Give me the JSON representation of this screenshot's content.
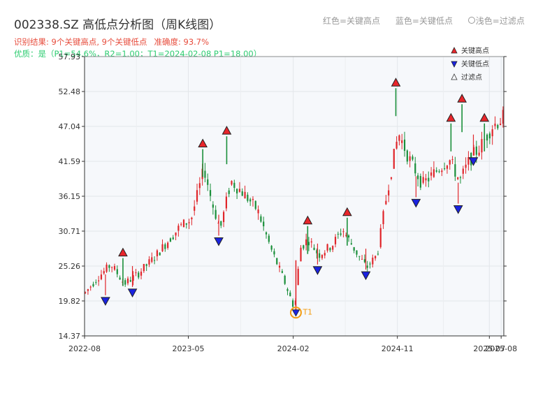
{
  "header": {
    "title": "002338.SZ 高低点分析图（周K线图）",
    "result_line": "识别结果: 9个关键高点, 9个关键低点",
    "accuracy": "准确度: 93.7%",
    "quality_line": "优质：是（P1=54.6%，R2=1.00；T1=2024-02-08 P1=18.00）"
  },
  "top_legend": {
    "red": "红色=关键高点",
    "blue": "蓝色=关键低点",
    "light": "浅色=过滤点"
  },
  "colors": {
    "up": "#e0262b",
    "down": "#1a8f3a",
    "high_marker": "#e8262b",
    "low_marker": "#1a23e0",
    "t1": "#f39c12",
    "plot_bg": "#f6f8fb",
    "grid": "#e3e6ea"
  },
  "chart_data": {
    "type": "candlestick",
    "title": "002338.SZ 高低点分析图（周K线图）",
    "y_ticks": [
      "14.37",
      "19.82",
      "25.26",
      "30.71",
      "36.15",
      "41.59",
      "47.04",
      "52.48",
      "57.93"
    ],
    "ylim": [
      14.37,
      57.93
    ],
    "x_ticks": [
      {
        "label": "2022-08",
        "date": "2022-08-01"
      },
      {
        "label": "2023-05",
        "date": "2023-05-01"
      },
      {
        "label": "2024-02",
        "date": "2024-02-01"
      },
      {
        "label": "2024-11",
        "date": "2024-11-01"
      },
      {
        "label": "2025-07",
        "date": "2025-07-01"
      },
      {
        "label": "2025-08",
        "date": "2025-08-01"
      }
    ],
    "xlim": [
      "2022-08-01",
      "2025-08-08"
    ],
    "grid": true,
    "legend": {
      "placement": "top-right",
      "items": [
        {
          "label": "关键高点",
          "marker": "triangle-up",
          "color": "#e8262b"
        },
        {
          "label": "关键低点",
          "marker": "triangle-down",
          "color": "#1a23e0"
        },
        {
          "label": "过滤点",
          "marker": "triangle-up-hollow",
          "color": "#333333"
        }
      ]
    },
    "trend": [
      [
        "2022-08-01",
        21.0
      ],
      [
        "2022-09-05",
        23.5
      ],
      [
        "2022-10-10",
        25.5
      ],
      [
        "2022-11-14",
        22.5
      ],
      [
        "2022-12-19",
        24.0
      ],
      [
        "2023-01-30",
        26.5
      ],
      [
        "2023-03-06",
        29.0
      ],
      [
        "2023-04-10",
        31.5
      ],
      [
        "2023-05-08",
        32.5
      ],
      [
        "2023-06-12",
        40.5
      ],
      [
        "2023-07-03",
        35.0
      ],
      [
        "2023-07-24",
        31.0
      ],
      [
        "2023-08-21",
        38.5
      ],
      [
        "2023-09-25",
        36.5
      ],
      [
        "2023-10-30",
        34.0
      ],
      [
        "2023-12-04",
        28.0
      ],
      [
        "2024-01-08",
        23.0
      ],
      [
        "2024-02-05",
        18.5
      ],
      [
        "2024-02-19",
        28.0
      ],
      [
        "2024-03-11",
        29.5
      ],
      [
        "2024-04-08",
        27.0
      ],
      [
        "2024-05-13",
        28.5
      ],
      [
        "2024-06-10",
        31.0
      ],
      [
        "2024-07-15",
        27.5
      ],
      [
        "2024-08-12",
        25.0
      ],
      [
        "2024-09-09",
        27.0
      ],
      [
        "2024-10-07",
        37.5
      ],
      [
        "2024-11-04",
        46.0
      ],
      [
        "2024-12-02",
        42.0
      ],
      [
        "2025-01-06",
        38.0
      ],
      [
        "2025-02-10",
        40.0
      ],
      [
        "2025-03-17",
        42.0
      ],
      [
        "2025-04-14",
        38.5
      ],
      [
        "2025-05-12",
        42.0
      ],
      [
        "2025-06-09",
        44.0
      ],
      [
        "2025-07-07",
        47.0
      ],
      [
        "2025-08-08",
        48.5
      ]
    ],
    "key_highs": [
      {
        "date": "2022-11-10",
        "value": 26.5
      },
      {
        "date": "2023-06-08",
        "value": 43.5
      },
      {
        "date": "2023-08-10",
        "value": 45.5
      },
      {
        "date": "2024-03-10",
        "value": 31.5
      },
      {
        "date": "2024-06-22",
        "value": 32.8
      },
      {
        "date": "2024-10-28",
        "value": 53.0
      },
      {
        "date": "2025-03-22",
        "value": 47.5
      },
      {
        "date": "2025-04-20",
        "value": 50.5
      },
      {
        "date": "2025-06-18",
        "value": 47.5
      }
    ],
    "key_lows": [
      {
        "date": "2022-09-25",
        "value": 20.7
      },
      {
        "date": "2022-12-05",
        "value": 22.0
      },
      {
        "date": "2023-07-20",
        "value": 30.0
      },
      {
        "date": "2024-04-05",
        "value": 25.5
      },
      {
        "date": "2024-08-10",
        "value": 24.7
      },
      {
        "date": "2024-12-20",
        "value": 36.0
      },
      {
        "date": "2025-04-10",
        "value": 35.0
      },
      {
        "date": "2025-05-20",
        "value": 42.5
      }
    ],
    "t1_point": {
      "label": "T1",
      "date": "2024-02-08",
      "value": 18.0
    }
  }
}
